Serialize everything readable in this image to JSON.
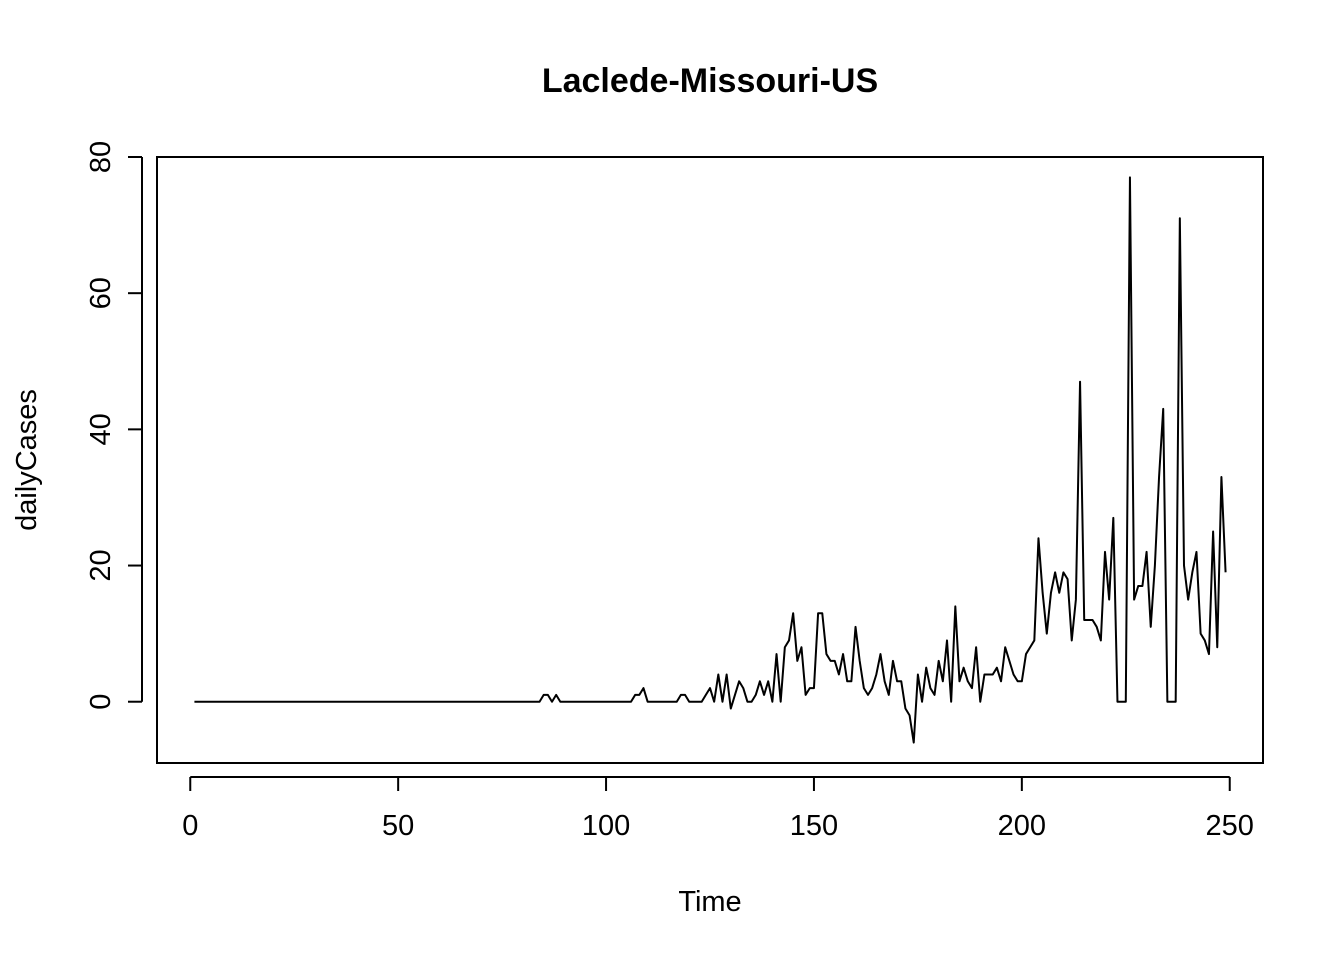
{
  "chart_data": {
    "type": "line",
    "title": "Laclede-Missouri-US",
    "xlabel": "Time",
    "ylabel": "dailyCases",
    "xlim": [
      -8,
      258
    ],
    "ylim": [
      -9,
      80
    ],
    "x_ticks": [
      0,
      50,
      100,
      150,
      200,
      250
    ],
    "y_ticks": [
      0,
      20,
      40,
      60,
      80
    ],
    "grid": false,
    "legend": "none",
    "line_color": "#000000",
    "series": [
      {
        "x_start": 1,
        "values": [
          0,
          0,
          0,
          0,
          0,
          0,
          0,
          0,
          0,
          0,
          0,
          0,
          0,
          0,
          0,
          0,
          0,
          0,
          0,
          0,
          0,
          0,
          0,
          0,
          0,
          0,
          0,
          0,
          0,
          0,
          0,
          0,
          0,
          0,
          0,
          0,
          0,
          0,
          0,
          0,
          0,
          0,
          0,
          0,
          0,
          0,
          0,
          0,
          0,
          0,
          0,
          0,
          0,
          0,
          0,
          0,
          0,
          0,
          0,
          0,
          0,
          0,
          0,
          0,
          0,
          0,
          0,
          0,
          0,
          0,
          0,
          0,
          0,
          0,
          0,
          0,
          0,
          0,
          0,
          0,
          0,
          0,
          0,
          0,
          1,
          1,
          0,
          1,
          0,
          0,
          0,
          0,
          0,
          0,
          0,
          0,
          0,
          0,
          0,
          0,
          0,
          0,
          0,
          0,
          0,
          0,
          1,
          1,
          2,
          0,
          0,
          0,
          0,
          0,
          0,
          0,
          0,
          1,
          1,
          0,
          0,
          0,
          0,
          1,
          2,
          0,
          4,
          0,
          4,
          -1,
          1,
          3,
          2,
          0,
          0,
          1,
          3,
          1,
          3,
          0,
          7,
          0,
          8,
          9,
          13,
          6,
          8,
          1,
          2,
          2,
          13,
          13,
          7,
          6,
          6,
          4,
          7,
          3,
          3,
          11,
          6,
          2,
          1,
          2,
          4,
          7,
          3,
          1,
          6,
          3,
          3,
          -1,
          -2,
          -6,
          4,
          0,
          5,
          2,
          1,
          6,
          3,
          9,
          0,
          14,
          3,
          5,
          3,
          2,
          8,
          0,
          4,
          4,
          4,
          5,
          3,
          8,
          6,
          4,
          3,
          3,
          7,
          8,
          9,
          24,
          16,
          10,
          16,
          19,
          16,
          19,
          18,
          9,
          15,
          47,
          12,
          12,
          12,
          11,
          9,
          22,
          15,
          27,
          0,
          0,
          0,
          77,
          15,
          17,
          17,
          22,
          11,
          20,
          33,
          43,
          0,
          0,
          0,
          71,
          20,
          15,
          19,
          22,
          10,
          9,
          7,
          25,
          8,
          33,
          19
        ]
      }
    ]
  }
}
